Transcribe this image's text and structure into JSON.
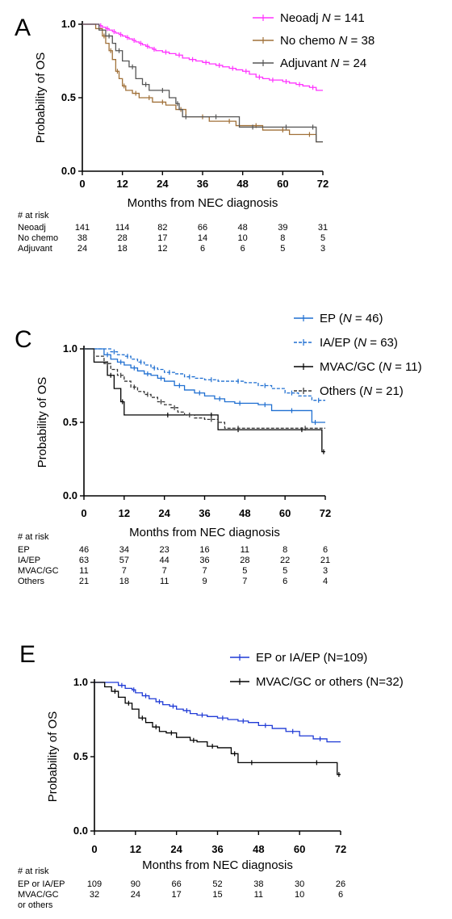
{
  "chart_data": [
    {
      "panel": "A",
      "type": "line",
      "title": "",
      "xlabel": "Months from NEC diagnosis",
      "ylabel": "Probability of OS",
      "xlim": [
        0,
        72
      ],
      "ylim": [
        0,
        1.0
      ],
      "x_ticks": [
        "0",
        "12",
        "24",
        "36",
        "48",
        "60",
        "72"
      ],
      "y_ticks": [
        "0.0",
        "0.5",
        "1.0"
      ],
      "legend_position": "top-right",
      "series": [
        {
          "name": "Neoadj",
          "n_label": "141",
          "color": "#ff33ff",
          "dash": "solid",
          "x": [
            0,
            3,
            5,
            6,
            7,
            8,
            9,
            10,
            11,
            12,
            13,
            14,
            15,
            16,
            17,
            18,
            19,
            20,
            21,
            22,
            24,
            26,
            28,
            30,
            32,
            34,
            36,
            38,
            40,
            42,
            44,
            46,
            48,
            50,
            52,
            54,
            56,
            58,
            60,
            62,
            64,
            66,
            68,
            70,
            72
          ],
          "y": [
            1.0,
            1.0,
            0.99,
            0.98,
            0.97,
            0.96,
            0.95,
            0.94,
            0.93,
            0.92,
            0.91,
            0.9,
            0.89,
            0.88,
            0.87,
            0.86,
            0.85,
            0.84,
            0.83,
            0.82,
            0.81,
            0.8,
            0.79,
            0.77,
            0.76,
            0.75,
            0.74,
            0.73,
            0.72,
            0.71,
            0.7,
            0.69,
            0.68,
            0.66,
            0.64,
            0.63,
            0.62,
            0.62,
            0.61,
            0.6,
            0.59,
            0.58,
            0.57,
            0.55,
            0.55
          ]
        },
        {
          "name": "No chemo",
          "n_label": "38",
          "color": "#a07038",
          "dash": "solid",
          "x": [
            0,
            4,
            6,
            7,
            8,
            9,
            10,
            11,
            12,
            13,
            15,
            17,
            19,
            21,
            23,
            25,
            28,
            31,
            34,
            38,
            42,
            46,
            50,
            54,
            58,
            62,
            66,
            70,
            72
          ],
          "y": [
            1.0,
            0.97,
            0.92,
            0.87,
            0.82,
            0.76,
            0.68,
            0.63,
            0.58,
            0.55,
            0.53,
            0.5,
            0.5,
            0.47,
            0.47,
            0.45,
            0.42,
            0.37,
            0.37,
            0.34,
            0.34,
            0.31,
            0.31,
            0.28,
            0.28,
            0.25,
            0.25,
            0.2,
            0.2
          ]
        },
        {
          "name": "Adjuvant",
          "n_label": "24",
          "color": "#555555",
          "dash": "solid",
          "x": [
            0,
            5,
            7,
            9,
            10,
            12,
            14,
            16,
            18,
            20,
            22,
            26,
            28,
            29,
            30,
            32,
            36,
            44,
            47,
            55,
            60,
            62,
            68,
            70,
            72
          ],
          "y": [
            1.0,
            0.96,
            0.92,
            0.87,
            0.82,
            0.75,
            0.71,
            0.63,
            0.59,
            0.55,
            0.55,
            0.5,
            0.46,
            0.42,
            0.37,
            0.37,
            0.37,
            0.37,
            0.3,
            0.3,
            0.3,
            0.3,
            0.3,
            0.2,
            0.2
          ]
        }
      ],
      "risk_table": {
        "header": "# at risk",
        "rows": [
          {
            "label": "Neoadj",
            "values": [
              "141",
              "114",
              "82",
              "66",
              "48",
              "39",
              "31"
            ]
          },
          {
            "label": "No chemo",
            "values": [
              "38",
              "28",
              "17",
              "14",
              "10",
              "8",
              "5"
            ]
          },
          {
            "label": "Adjuvant",
            "values": [
              "24",
              "18",
              "12",
              "6",
              "6",
              "5",
              "3"
            ]
          }
        ]
      }
    },
    {
      "panel": "C",
      "type": "line",
      "title": "",
      "xlabel": "Months from NEC diagnosis",
      "ylabel": "Probability of OS",
      "xlim": [
        0,
        72
      ],
      "ylim": [
        0,
        1.0
      ],
      "x_ticks": [
        "0",
        "12",
        "24",
        "36",
        "48",
        "60",
        "72"
      ],
      "y_ticks": [
        "0.0",
        "0.5",
        "1.0"
      ],
      "legend_position": "top-right",
      "series": [
        {
          "name": "EP",
          "n_label": "46",
          "color": "#1f6fd1",
          "dash": "solid",
          "x": [
            0,
            4,
            6,
            8,
            10,
            12,
            14,
            16,
            18,
            20,
            22,
            24,
            27,
            30,
            33,
            36,
            39,
            42,
            45,
            48,
            52,
            56,
            60,
            64,
            68,
            70,
            72
          ],
          "y": [
            1.0,
            1.0,
            0.96,
            0.93,
            0.91,
            0.89,
            0.87,
            0.85,
            0.83,
            0.82,
            0.8,
            0.78,
            0.75,
            0.72,
            0.7,
            0.68,
            0.66,
            0.64,
            0.63,
            0.63,
            0.62,
            0.58,
            0.58,
            0.58,
            0.5,
            0.5,
            0.5
          ]
        },
        {
          "name": "IA/EP",
          "n_label": "63",
          "color": "#1f6fd1",
          "dash": "dashed",
          "x": [
            0,
            6,
            8,
            10,
            12,
            14,
            16,
            18,
            20,
            22,
            24,
            27,
            30,
            33,
            36,
            40,
            44,
            48,
            52,
            56,
            60,
            64,
            68,
            72
          ],
          "y": [
            1.0,
            1.0,
            0.98,
            0.96,
            0.95,
            0.93,
            0.91,
            0.89,
            0.87,
            0.86,
            0.84,
            0.83,
            0.81,
            0.8,
            0.79,
            0.78,
            0.78,
            0.77,
            0.75,
            0.73,
            0.7,
            0.68,
            0.65,
            0.65
          ]
        },
        {
          "name": "MVAC/GC",
          "n_label": "11",
          "color": "#000000",
          "dash": "solid",
          "x": [
            0,
            3,
            7,
            9,
            11,
            12,
            20,
            30,
            36,
            40,
            42,
            50,
            60,
            70,
            71,
            72
          ],
          "y": [
            1.0,
            0.91,
            0.82,
            0.73,
            0.64,
            0.55,
            0.55,
            0.55,
            0.55,
            0.45,
            0.45,
            0.45,
            0.45,
            0.45,
            0.3,
            0.3
          ]
        },
        {
          "name": "Others",
          "n_label": "21",
          "color": "#333333",
          "dash": "dashed",
          "x": [
            0,
            3,
            6,
            8,
            10,
            12,
            14,
            16,
            18,
            20,
            22,
            24,
            26,
            28,
            30,
            33,
            36,
            40,
            42,
            50,
            60,
            72
          ],
          "y": [
            1.0,
            0.95,
            0.9,
            0.86,
            0.82,
            0.78,
            0.74,
            0.71,
            0.69,
            0.67,
            0.64,
            0.62,
            0.6,
            0.57,
            0.55,
            0.53,
            0.52,
            0.5,
            0.46,
            0.46,
            0.46,
            0.46
          ]
        }
      ],
      "risk_table": {
        "header": "# at risk",
        "rows": [
          {
            "label": "EP",
            "values": [
              "46",
              "34",
              "23",
              "16",
              "11",
              "8",
              "6"
            ]
          },
          {
            "label": "IA/EP",
            "values": [
              "63",
              "57",
              "44",
              "36",
              "28",
              "22",
              "21"
            ]
          },
          {
            "label": "MVAC/GC",
            "values": [
              "11",
              "7",
              "7",
              "7",
              "5",
              "5",
              "3"
            ]
          },
          {
            "label": "Others",
            "values": [
              "21",
              "18",
              "11",
              "9",
              "7",
              "6",
              "4"
            ]
          }
        ]
      }
    },
    {
      "panel": "E",
      "type": "line",
      "title": "",
      "xlabel": "Months from NEC diagnosis",
      "ylabel": "Probability of OS",
      "xlim": [
        0,
        72
      ],
      "ylim": [
        0,
        1.0
      ],
      "x_ticks": [
        "0",
        "12",
        "24",
        "36",
        "48",
        "60",
        "72"
      ],
      "y_ticks": [
        "0.0",
        "0.5",
        "1.0"
      ],
      "legend_position": "top-right",
      "series": [
        {
          "name": "EP or IA/EP (N=109)",
          "color": "#1f3ad6",
          "dash": "solid",
          "x": [
            0,
            5,
            7,
            9,
            11,
            12,
            14,
            16,
            18,
            20,
            22,
            24,
            26,
            28,
            30,
            33,
            36,
            39,
            42,
            45,
            48,
            52,
            56,
            60,
            64,
            68,
            72
          ],
          "y": [
            1.0,
            1.0,
            0.98,
            0.96,
            0.95,
            0.93,
            0.91,
            0.89,
            0.87,
            0.85,
            0.84,
            0.82,
            0.81,
            0.79,
            0.78,
            0.77,
            0.76,
            0.75,
            0.74,
            0.73,
            0.71,
            0.69,
            0.67,
            0.64,
            0.62,
            0.6,
            0.6
          ]
        },
        {
          "name": "MVAC/GC or others (N=32)",
          "color": "#000000",
          "dash": "solid",
          "x": [
            0,
            3,
            5,
            7,
            9,
            11,
            13,
            15,
            17,
            19,
            21,
            24,
            28,
            30,
            33,
            36,
            40,
            42,
            44,
            48,
            60,
            70,
            71,
            72
          ],
          "y": [
            1.0,
            0.97,
            0.94,
            0.9,
            0.86,
            0.82,
            0.76,
            0.73,
            0.7,
            0.67,
            0.66,
            0.63,
            0.61,
            0.6,
            0.57,
            0.56,
            0.52,
            0.46,
            0.46,
            0.46,
            0.46,
            0.46,
            0.38,
            0.38
          ]
        }
      ],
      "risk_table": {
        "header": "# at risk",
        "rows": [
          {
            "label": "EP or IA/EP",
            "values": [
              "109",
              "90",
              "66",
              "52",
              "38",
              "30",
              "26"
            ]
          },
          {
            "label": "MVAC/GC\nor others",
            "values": [
              "32",
              "24",
              "17",
              "15",
              "11",
              "10",
              "6"
            ]
          }
        ]
      }
    }
  ]
}
